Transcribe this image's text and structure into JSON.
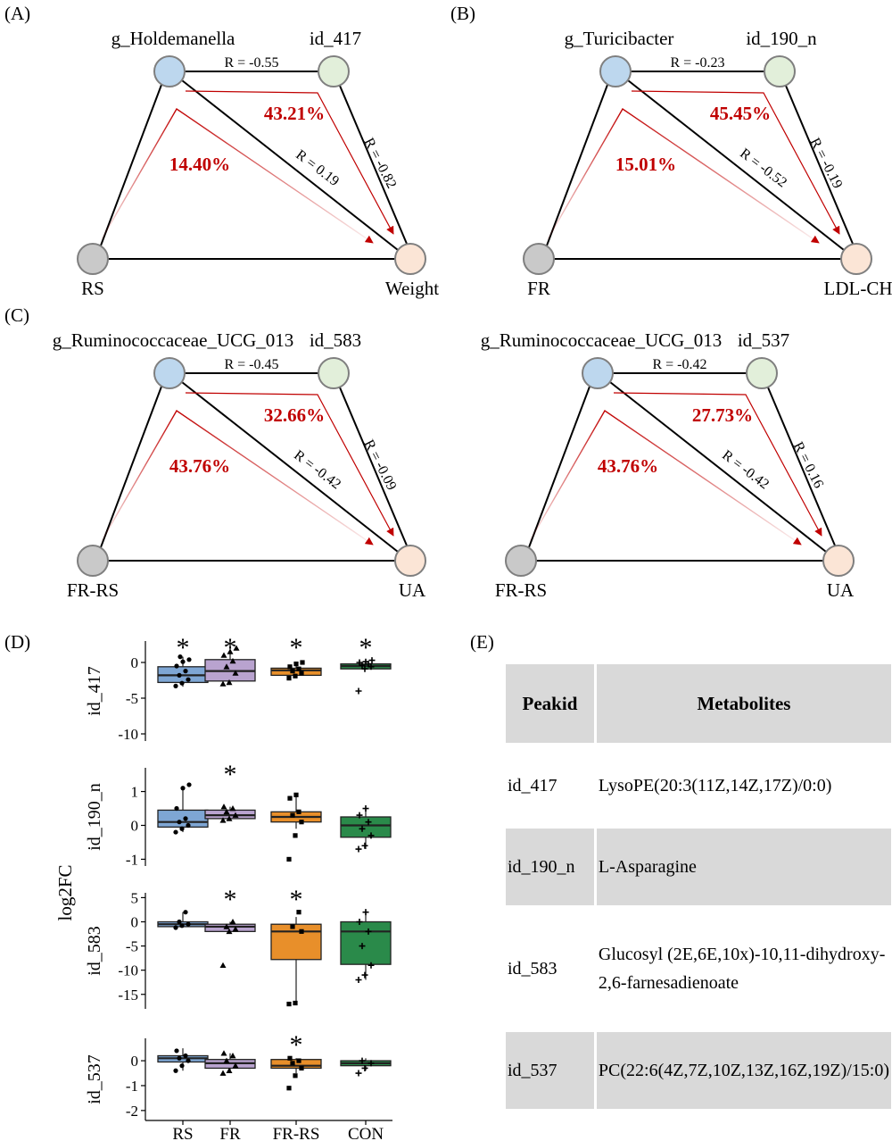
{
  "panels": [
    {
      "label": "(A)",
      "top_left": "g_Holdemanella",
      "top_right": "id_417",
      "bottom_left": "RS",
      "bottom_right": "Weight",
      "r_top": "R = -0.55",
      "r_diag": "R = 0.19",
      "r_right": "R = -0.82",
      "pct_inner": "14.40%",
      "pct_outer": "43.21%"
    },
    {
      "label": "(B)",
      "top_left": "g_Turicibacter",
      "top_right": "id_190_n",
      "bottom_left": "FR",
      "bottom_right": "LDL-CH",
      "r_top": "R = -0.23",
      "r_diag": "R = -0.52",
      "r_right": "R = -0.19",
      "pct_inner": "15.01%",
      "pct_outer": "45.45%"
    },
    {
      "label": "(C)",
      "top_left": "g_Ruminococcaceae_UCG_013",
      "top_right": "id_583",
      "bottom_left": "FR-RS",
      "bottom_right": "UA",
      "r_top": "R = -0.45",
      "r_diag": "R = -0.42",
      "r_right": "R = -0.09",
      "pct_inner": "43.76%",
      "pct_outer": "32.66%"
    },
    {
      "label": "",
      "top_left": "g_Ruminococcaceae_UCG_013",
      "top_right": "id_537",
      "bottom_left": "FR-RS",
      "bottom_right": "UA",
      "r_top": "R = -0.42",
      "r_diag": "R = -0.42",
      "r_right": "R = 0.16",
      "pct_inner": "43.76%",
      "pct_outer": "27.73%"
    }
  ],
  "colors": {
    "genus_node": "#bdd7ee",
    "metabolite_node": "#e2efda",
    "group_node": "#c9c9c9",
    "outcome_node": "#fbe5d6",
    "arrow": "#c00000",
    "percent_text": "#c00000",
    "rs": "#7ea6d4",
    "fr": "#b9a3cf",
    "frrs": "#e88f2a",
    "con": "#2a8a4a"
  },
  "chart_data": {
    "type": "box",
    "label": "(D)",
    "ylabel": "log2FC",
    "categories": [
      "RS",
      "FR",
      "FR-RS",
      "CON"
    ],
    "facets": [
      {
        "name": "id_417",
        "ylim": [
          -11,
          3
        ],
        "yticks": [
          0,
          -5,
          -10
        ],
        "significant": [
          true,
          true,
          true,
          true
        ],
        "box": {
          "RS": [
            -3.4,
            -2.8,
            -1.8,
            -0.6,
            0.8
          ],
          "FR": [
            -3.0,
            -2.6,
            -1.2,
            0.4,
            2.0
          ],
          "FR-RS": [
            -2.2,
            -1.8,
            -1.1,
            -0.8,
            0.0
          ],
          "CON": [
            -0.9,
            -0.9,
            -0.5,
            -0.2,
            0.2
          ]
        },
        "points": {
          "RS": [
            -3.3,
            -2.9,
            -2.4,
            -1.8,
            -1.2,
            -0.5,
            0.1,
            0.4,
            0.8
          ],
          "FR": [
            -3.0,
            -2.8,
            -1.5,
            -0.6,
            0.2,
            1.0,
            1.5,
            2.0
          ],
          "FR-RS": [
            -2.2,
            -1.9,
            -1.5,
            -1.2,
            -0.9,
            -0.6,
            -0.2,
            0.0
          ],
          "CON": [
            -4.0,
            -0.9,
            -0.6,
            -0.4,
            -0.2,
            0.0,
            0.1,
            0.3
          ]
        }
      },
      {
        "name": "id_190_n",
        "ylim": [
          -1.2,
          1.7
        ],
        "yticks": [
          1,
          0,
          -1
        ],
        "significant": [
          false,
          true,
          false,
          false
        ],
        "box": {
          "RS": [
            -0.2,
            -0.05,
            0.1,
            0.45,
            1.1
          ],
          "FR": [
            0.15,
            0.2,
            0.3,
            0.45,
            0.55
          ],
          "FR-RS": [
            -0.1,
            0.1,
            0.25,
            0.4,
            0.9
          ],
          "CON": [
            -0.7,
            -0.35,
            0.0,
            0.25,
            0.5
          ]
        },
        "points": {
          "RS": [
            -0.2,
            -0.1,
            0.0,
            0.1,
            0.2,
            0.5,
            1.1,
            1.2
          ],
          "FR": [
            0.15,
            0.2,
            0.3,
            0.4,
            0.5,
            0.55
          ],
          "FR-RS": [
            -1.0,
            -0.3,
            0.1,
            0.3,
            0.4,
            0.8,
            0.9
          ],
          "CON": [
            -0.7,
            -0.6,
            -0.3,
            -0.1,
            0.1,
            0.3,
            0.5
          ]
        }
      },
      {
        "name": "id_583",
        "ylim": [
          -18,
          6
        ],
        "yticks": [
          5,
          0,
          -5,
          -10,
          -15
        ],
        "significant": [
          false,
          true,
          true,
          false
        ],
        "box": {
          "RS": [
            -1.2,
            -1.0,
            -0.5,
            0.0,
            2.0
          ],
          "FR": [
            -2.0,
            -2.0,
            -1.0,
            -0.5,
            0.0
          ],
          "FR-RS": [
            -17.0,
            -7.8,
            -2.0,
            -0.5,
            1.0
          ],
          "CON": [
            -12.0,
            -8.8,
            -2.0,
            0.0,
            2.0
          ]
        },
        "points": {
          "RS": [
            -1.2,
            -0.8,
            -0.5,
            0.0,
            2.0
          ],
          "FR": [
            -9.0,
            -2.0,
            -1.5,
            -1.0,
            0.0
          ],
          "FR-RS": [
            -17.0,
            -16.8,
            -2.0,
            -1.0,
            2.0
          ],
          "CON": [
            -12.0,
            -11.0,
            -9.0,
            -5.0,
            -2.0,
            0.0,
            2.0
          ]
        }
      },
      {
        "name": "id_537",
        "ylim": [
          -2.4,
          0.9
        ],
        "yticks": [
          0,
          -1,
          -2
        ],
        "significant": [
          false,
          false,
          true,
          false
        ],
        "box": {
          "RS": [
            -0.4,
            -0.05,
            0.1,
            0.2,
            0.5
          ],
          "FR": [
            -0.5,
            -0.3,
            -0.1,
            0.05,
            0.3
          ],
          "FR-RS": [
            -0.5,
            -0.3,
            -0.2,
            0.05,
            0.1
          ],
          "CON": [
            -0.4,
            -0.2,
            -0.1,
            0.0,
            0.1
          ]
        },
        "points": {
          "RS": [
            -0.4,
            -0.2,
            0.0,
            0.1,
            0.2,
            0.4
          ],
          "FR": [
            -0.5,
            -0.4,
            -0.2,
            0.0,
            0.2,
            0.3
          ],
          "FR-RS": [
            -1.1,
            -0.6,
            -0.3,
            -0.1,
            0.0,
            0.1
          ],
          "CON": [
            -0.5,
            -0.3,
            -0.1,
            0.0
          ]
        }
      }
    ]
  },
  "table": {
    "label": "(E)",
    "headers": [
      "Peakid",
      "Metabolites"
    ],
    "rows": [
      {
        "peakid": "id_417",
        "metabolite": "LysoPE(20:3(11Z,14Z,17Z)/0:0)"
      },
      {
        "peakid": "id_190_n",
        "metabolite": "L-Asparagine"
      },
      {
        "peakid": "id_583",
        "metabolite": "Glucosyl (2E,6E,10x)-10,11-dihydroxy-2,6-farnesadienoate"
      },
      {
        "peakid": "id_537",
        "metabolite": "PC(22:6(4Z,7Z,10Z,13Z,16Z,19Z)/15:0)"
      }
    ]
  }
}
